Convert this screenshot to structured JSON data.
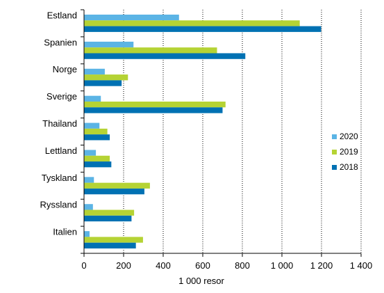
{
  "chart_data": {
    "type": "bar",
    "orientation": "horizontal",
    "categories": [
      "Estland",
      "Spanien",
      "Norge",
      "Sverige",
      "Thailand",
      "Lettland",
      "Tyskland",
      "Ryssland",
      "Italien"
    ],
    "series": [
      {
        "name": "2020",
        "color": "#5bb4e5",
        "values": [
          480,
          250,
          105,
          85,
          78,
          60,
          50,
          45,
          28
        ]
      },
      {
        "name": "2019",
        "color": "#b5d334",
        "values": [
          1090,
          672,
          222,
          715,
          118,
          130,
          333,
          253,
          298
        ]
      },
      {
        "name": "2018",
        "color": "#0071b3",
        "values": [
          1198,
          815,
          190,
          700,
          130,
          138,
          305,
          240,
          262
        ]
      }
    ],
    "xlabel": "1 000 resor",
    "ylabel": "",
    "xlim": [
      0,
      1400
    ],
    "xticks": [
      0,
      200,
      400,
      600,
      800,
      1000,
      1200,
      1400
    ],
    "xtick_labels": [
      "0",
      "200",
      "400",
      "600",
      "800",
      "1 000",
      "1 200",
      "1 400"
    ],
    "grid": "vertical",
    "legend": {
      "position": "right",
      "order": [
        "2020",
        "2019",
        "2018"
      ]
    }
  }
}
